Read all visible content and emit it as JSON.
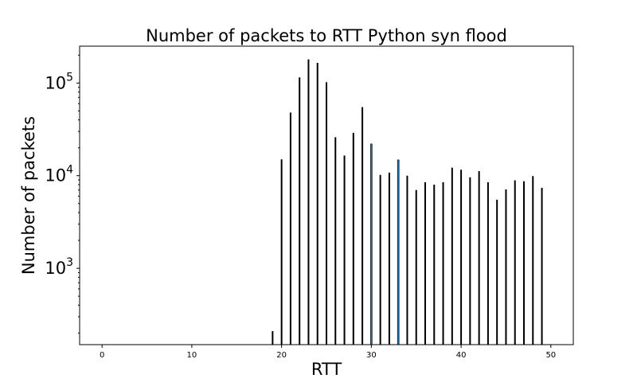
{
  "chart_data": {
    "type": "bar",
    "title": "Number of packets to RTT Python syn flood",
    "xlabel": "RTT",
    "ylabel": "Number of packets",
    "y_scale": "log",
    "xlim": [
      -2.5,
      52.5
    ],
    "ylim": [
      150,
      250000
    ],
    "x_ticks": [
      0,
      10,
      20,
      30,
      40,
      50
    ],
    "y_ticks": [
      {
        "value": 1000,
        "base": "10",
        "exp": "3"
      },
      {
        "value": 10000,
        "base": "10",
        "exp": "4"
      },
      {
        "value": 100000,
        "base": "10",
        "exp": "5"
      }
    ],
    "x": [
      19,
      20,
      21,
      22,
      23,
      24,
      25,
      26,
      27,
      28,
      29,
      30,
      31,
      32,
      33,
      34,
      35,
      36,
      37,
      38,
      39,
      40,
      41,
      42,
      43,
      44,
      45,
      46,
      47,
      48,
      49
    ],
    "values": [
      210,
      15000,
      48000,
      115000,
      180000,
      165000,
      102000,
      26000,
      16500,
      29000,
      55000,
      22000,
      10200,
      10800,
      14800,
      10000,
      7000,
      8500,
      8000,
      8500,
      12200,
      11600,
      9600,
      11200,
      8500,
      5500,
      7100,
      8900,
      8700,
      9900,
      7400
    ],
    "highlight_x": [
      30,
      33
    ],
    "colors": {
      "bar_edge": "#000000",
      "bar_fill": "#1f77b4",
      "axes": "#000000",
      "background": "#ffffff"
    },
    "grid": false,
    "legend": "none"
  }
}
